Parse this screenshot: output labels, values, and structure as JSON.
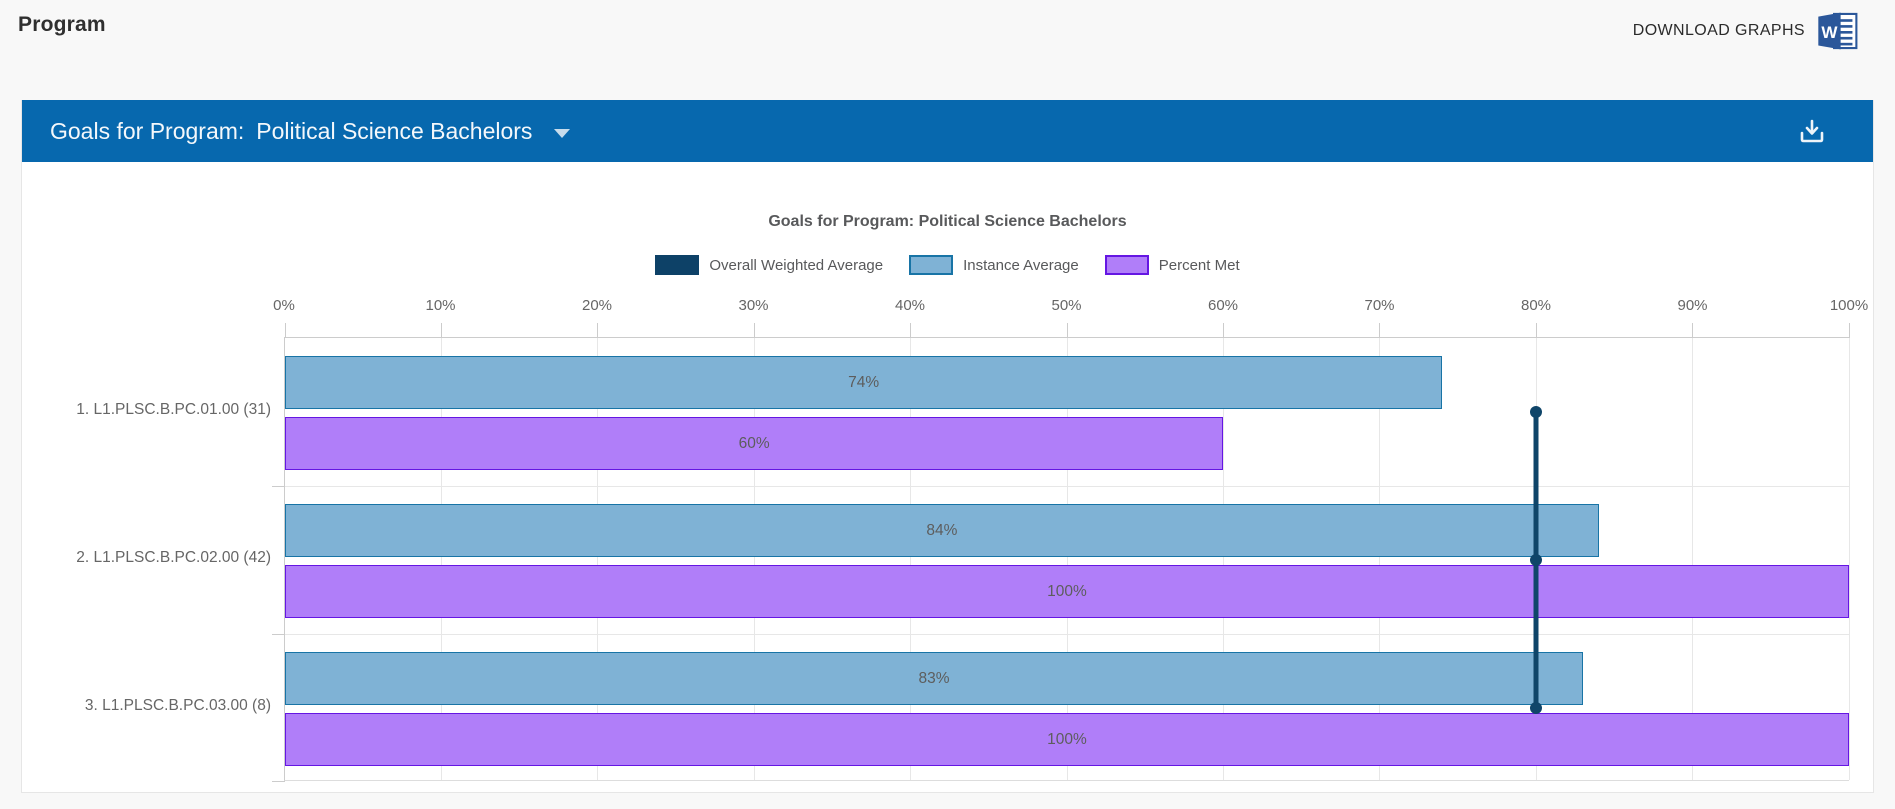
{
  "page": {
    "title": "Program",
    "download_graphs_label": "DOWNLOAD GRAPHS",
    "background": "#f8f8f8",
    "accent_blue": "#0768ae"
  },
  "panel_header": {
    "label": "Goals for Program:",
    "selected_program": "Political Science Bachelors",
    "download_icon": "download-tray-icon"
  },
  "chart_data": {
    "type": "bar",
    "orientation": "horizontal",
    "title": "Goals for Program: Political Science Bachelors",
    "categories": [
      "1. L1.PLSC.B.PC.01.00 (31)",
      "2. L1.PLSC.B.PC.02.00 (42)",
      "3. L1.PLSC.B.PC.03.00 (8)"
    ],
    "series": [
      {
        "name": "Overall Weighted Average",
        "render": "line-with-points",
        "values": [
          80,
          80,
          80
        ],
        "color": "#0f4569"
      },
      {
        "name": "Instance Average",
        "render": "bar",
        "values": [
          74,
          84,
          83
        ],
        "labels": [
          "74%",
          "84%",
          "83%"
        ],
        "fill": "#7fb2d5",
        "border": "#1874a6"
      },
      {
        "name": "Percent Met",
        "render": "bar",
        "values": [
          60,
          100,
          100
        ],
        "labels": [
          "60%",
          "100%",
          "100%"
        ],
        "fill": "#b07ef9",
        "border": "#6516e3"
      }
    ],
    "xlim": [
      0,
      100
    ],
    "x_tick_labels": [
      "0%",
      "10%",
      "20%",
      "30%",
      "40%",
      "50%",
      "60%",
      "70%",
      "80%",
      "90%",
      "100%"
    ],
    "grid": "vertical-every-10pct-and-category-dividers",
    "legend_position": "top-center",
    "data_label_color": "#5d5d5d"
  }
}
